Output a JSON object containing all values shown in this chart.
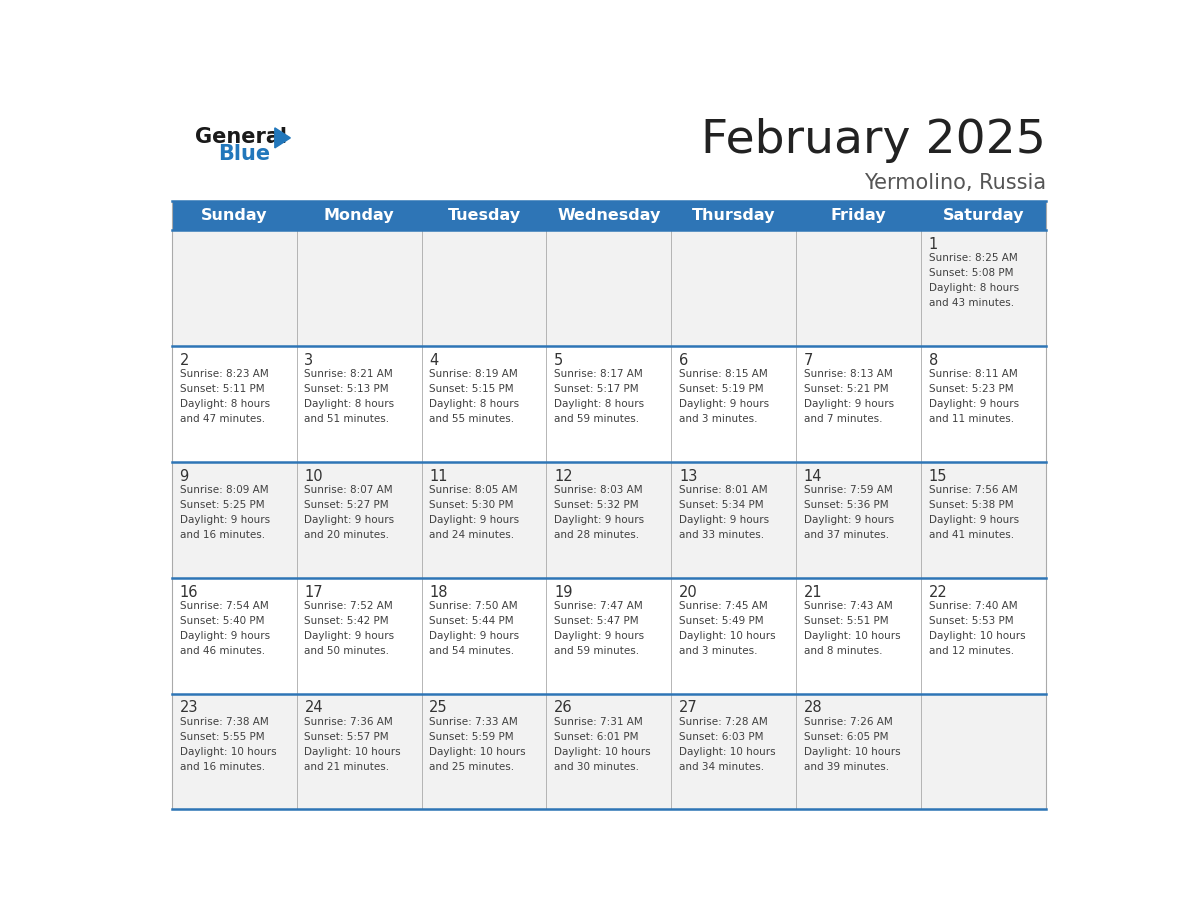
{
  "title": "February 2025",
  "subtitle": "Yermolino, Russia",
  "days_of_week": [
    "Sunday",
    "Monday",
    "Tuesday",
    "Wednesday",
    "Thursday",
    "Friday",
    "Saturday"
  ],
  "header_bg": "#2E75B6",
  "header_text_color": "#FFFFFF",
  "row_bg_odd": "#F2F2F2",
  "row_bg_even": "#FFFFFF",
  "separator_color": "#2E75B6",
  "border_color": "#AAAAAA",
  "text_color": "#404040",
  "day_num_color": "#333333",
  "title_color": "#222222",
  "subtitle_color": "#555555",
  "weeks": [
    [
      {
        "day": null,
        "sunrise": null,
        "sunset": null,
        "daylight_line1": null,
        "daylight_line2": null
      },
      {
        "day": null,
        "sunrise": null,
        "sunset": null,
        "daylight_line1": null,
        "daylight_line2": null
      },
      {
        "day": null,
        "sunrise": null,
        "sunset": null,
        "daylight_line1": null,
        "daylight_line2": null
      },
      {
        "day": null,
        "sunrise": null,
        "sunset": null,
        "daylight_line1": null,
        "daylight_line2": null
      },
      {
        "day": null,
        "sunrise": null,
        "sunset": null,
        "daylight_line1": null,
        "daylight_line2": null
      },
      {
        "day": null,
        "sunrise": null,
        "sunset": null,
        "daylight_line1": null,
        "daylight_line2": null
      },
      {
        "day": "1",
        "sunrise": "Sunrise: 8:25 AM",
        "sunset": "Sunset: 5:08 PM",
        "daylight_line1": "Daylight: 8 hours",
        "daylight_line2": "and 43 minutes."
      }
    ],
    [
      {
        "day": "2",
        "sunrise": "Sunrise: 8:23 AM",
        "sunset": "Sunset: 5:11 PM",
        "daylight_line1": "Daylight: 8 hours",
        "daylight_line2": "and 47 minutes."
      },
      {
        "day": "3",
        "sunrise": "Sunrise: 8:21 AM",
        "sunset": "Sunset: 5:13 PM",
        "daylight_line1": "Daylight: 8 hours",
        "daylight_line2": "and 51 minutes."
      },
      {
        "day": "4",
        "sunrise": "Sunrise: 8:19 AM",
        "sunset": "Sunset: 5:15 PM",
        "daylight_line1": "Daylight: 8 hours",
        "daylight_line2": "and 55 minutes."
      },
      {
        "day": "5",
        "sunrise": "Sunrise: 8:17 AM",
        "sunset": "Sunset: 5:17 PM",
        "daylight_line1": "Daylight: 8 hours",
        "daylight_line2": "and 59 minutes."
      },
      {
        "day": "6",
        "sunrise": "Sunrise: 8:15 AM",
        "sunset": "Sunset: 5:19 PM",
        "daylight_line1": "Daylight: 9 hours",
        "daylight_line2": "and 3 minutes."
      },
      {
        "day": "7",
        "sunrise": "Sunrise: 8:13 AM",
        "sunset": "Sunset: 5:21 PM",
        "daylight_line1": "Daylight: 9 hours",
        "daylight_line2": "and 7 minutes."
      },
      {
        "day": "8",
        "sunrise": "Sunrise: 8:11 AM",
        "sunset": "Sunset: 5:23 PM",
        "daylight_line1": "Daylight: 9 hours",
        "daylight_line2": "and 11 minutes."
      }
    ],
    [
      {
        "day": "9",
        "sunrise": "Sunrise: 8:09 AM",
        "sunset": "Sunset: 5:25 PM",
        "daylight_line1": "Daylight: 9 hours",
        "daylight_line2": "and 16 minutes."
      },
      {
        "day": "10",
        "sunrise": "Sunrise: 8:07 AM",
        "sunset": "Sunset: 5:27 PM",
        "daylight_line1": "Daylight: 9 hours",
        "daylight_line2": "and 20 minutes."
      },
      {
        "day": "11",
        "sunrise": "Sunrise: 8:05 AM",
        "sunset": "Sunset: 5:30 PM",
        "daylight_line1": "Daylight: 9 hours",
        "daylight_line2": "and 24 minutes."
      },
      {
        "day": "12",
        "sunrise": "Sunrise: 8:03 AM",
        "sunset": "Sunset: 5:32 PM",
        "daylight_line1": "Daylight: 9 hours",
        "daylight_line2": "and 28 minutes."
      },
      {
        "day": "13",
        "sunrise": "Sunrise: 8:01 AM",
        "sunset": "Sunset: 5:34 PM",
        "daylight_line1": "Daylight: 9 hours",
        "daylight_line2": "and 33 minutes."
      },
      {
        "day": "14",
        "sunrise": "Sunrise: 7:59 AM",
        "sunset": "Sunset: 5:36 PM",
        "daylight_line1": "Daylight: 9 hours",
        "daylight_line2": "and 37 minutes."
      },
      {
        "day": "15",
        "sunrise": "Sunrise: 7:56 AM",
        "sunset": "Sunset: 5:38 PM",
        "daylight_line1": "Daylight: 9 hours",
        "daylight_line2": "and 41 minutes."
      }
    ],
    [
      {
        "day": "16",
        "sunrise": "Sunrise: 7:54 AM",
        "sunset": "Sunset: 5:40 PM",
        "daylight_line1": "Daylight: 9 hours",
        "daylight_line2": "and 46 minutes."
      },
      {
        "day": "17",
        "sunrise": "Sunrise: 7:52 AM",
        "sunset": "Sunset: 5:42 PM",
        "daylight_line1": "Daylight: 9 hours",
        "daylight_line2": "and 50 minutes."
      },
      {
        "day": "18",
        "sunrise": "Sunrise: 7:50 AM",
        "sunset": "Sunset: 5:44 PM",
        "daylight_line1": "Daylight: 9 hours",
        "daylight_line2": "and 54 minutes."
      },
      {
        "day": "19",
        "sunrise": "Sunrise: 7:47 AM",
        "sunset": "Sunset: 5:47 PM",
        "daylight_line1": "Daylight: 9 hours",
        "daylight_line2": "and 59 minutes."
      },
      {
        "day": "20",
        "sunrise": "Sunrise: 7:45 AM",
        "sunset": "Sunset: 5:49 PM",
        "daylight_line1": "Daylight: 10 hours",
        "daylight_line2": "and 3 minutes."
      },
      {
        "day": "21",
        "sunrise": "Sunrise: 7:43 AM",
        "sunset": "Sunset: 5:51 PM",
        "daylight_line1": "Daylight: 10 hours",
        "daylight_line2": "and 8 minutes."
      },
      {
        "day": "22",
        "sunrise": "Sunrise: 7:40 AM",
        "sunset": "Sunset: 5:53 PM",
        "daylight_line1": "Daylight: 10 hours",
        "daylight_line2": "and 12 minutes."
      }
    ],
    [
      {
        "day": "23",
        "sunrise": "Sunrise: 7:38 AM",
        "sunset": "Sunset: 5:55 PM",
        "daylight_line1": "Daylight: 10 hours",
        "daylight_line2": "and 16 minutes."
      },
      {
        "day": "24",
        "sunrise": "Sunrise: 7:36 AM",
        "sunset": "Sunset: 5:57 PM",
        "daylight_line1": "Daylight: 10 hours",
        "daylight_line2": "and 21 minutes."
      },
      {
        "day": "25",
        "sunrise": "Sunrise: 7:33 AM",
        "sunset": "Sunset: 5:59 PM",
        "daylight_line1": "Daylight: 10 hours",
        "daylight_line2": "and 25 minutes."
      },
      {
        "day": "26",
        "sunrise": "Sunrise: 7:31 AM",
        "sunset": "Sunset: 6:01 PM",
        "daylight_line1": "Daylight: 10 hours",
        "daylight_line2": "and 30 minutes."
      },
      {
        "day": "27",
        "sunrise": "Sunrise: 7:28 AM",
        "sunset": "Sunset: 6:03 PM",
        "daylight_line1": "Daylight: 10 hours",
        "daylight_line2": "and 34 minutes."
      },
      {
        "day": "28",
        "sunrise": "Sunrise: 7:26 AM",
        "sunset": "Sunset: 6:05 PM",
        "daylight_line1": "Daylight: 10 hours",
        "daylight_line2": "and 39 minutes."
      },
      {
        "day": null,
        "sunrise": null,
        "sunset": null,
        "daylight_line1": null,
        "daylight_line2": null
      }
    ]
  ],
  "logo_general_color": "#1a1a1a",
  "logo_blue_color": "#2277BB"
}
